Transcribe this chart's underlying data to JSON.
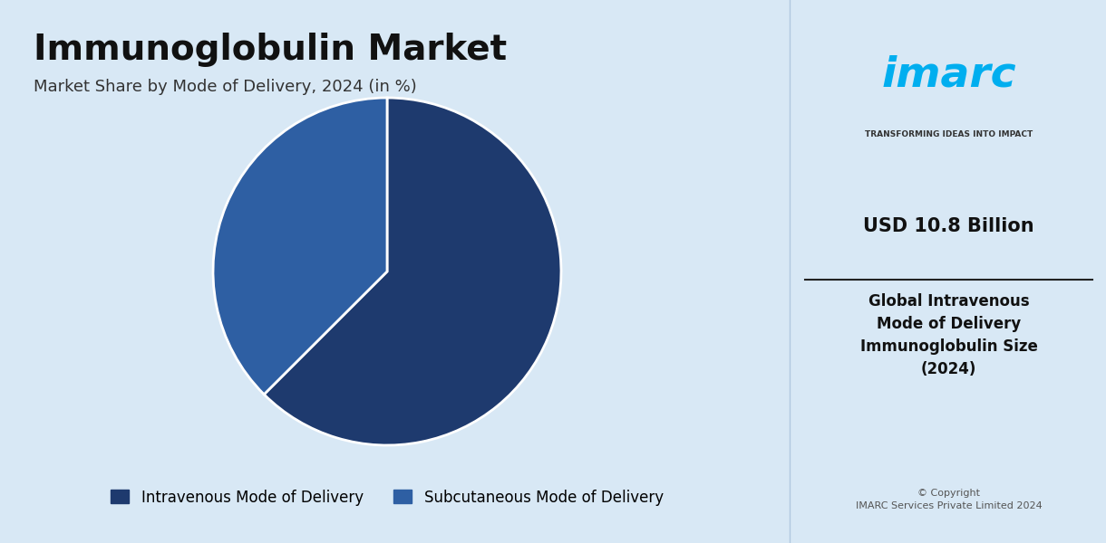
{
  "title": "Immunoglobulin Market",
  "subtitle": "Market Share by Mode of Delivery, 2024 (in %)",
  "slices": [
    62.5,
    37.5
  ],
  "labels": [
    "Intravenous Mode of Delivery",
    "Subcutaneous Mode of Delivery"
  ],
  "colors": [
    "#1e3a6e",
    "#2e5fa3"
  ],
  "bg_color": "#d8e8f5",
  "right_panel_bg": "#ffffff",
  "title_fontsize": 28,
  "subtitle_fontsize": 13,
  "legend_fontsize": 12,
  "usd_value": "USD 10.8 Billion",
  "usd_desc": "Global Intravenous\nMode of Delivery\nImmunoglobulin Size\n(2024)",
  "copyright": "© Copyright\nIMARC Services Private Limited 2024",
  "imarc_text": "TRANSFORMING IDEAS INTO IMPACT",
  "imarc_logo": "imarc",
  "start_angle": 90
}
